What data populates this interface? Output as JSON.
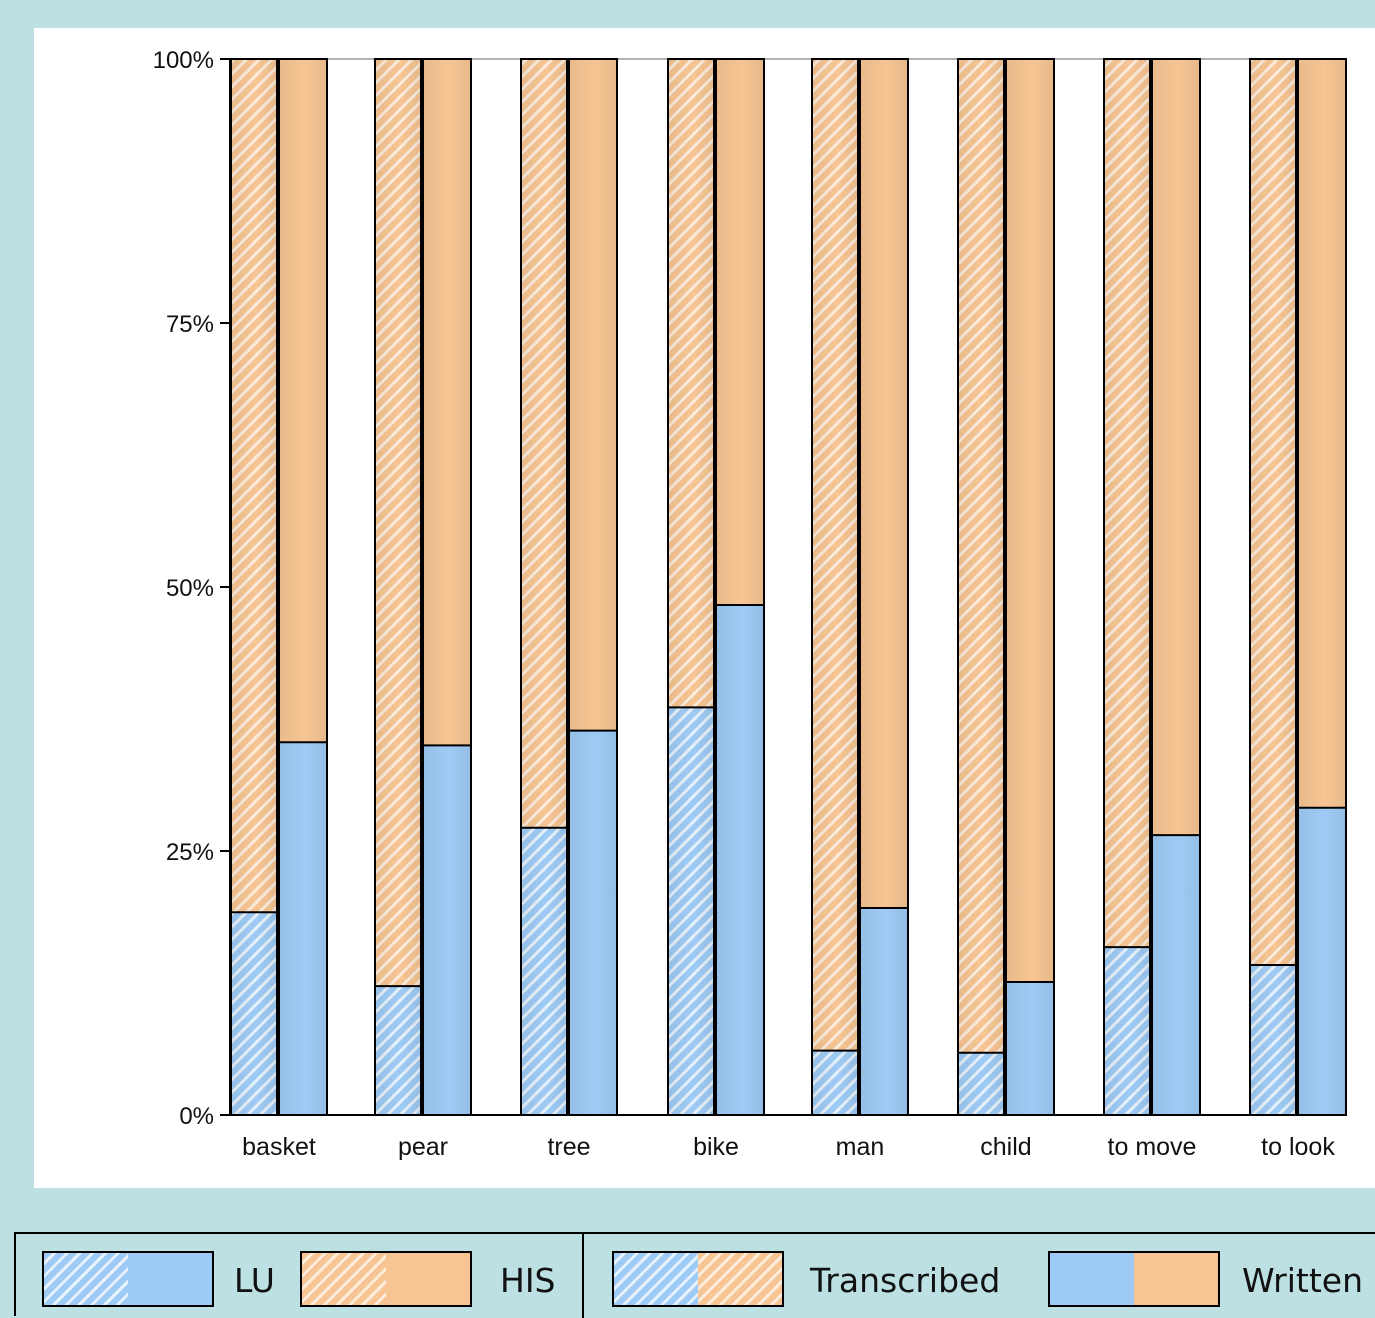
{
  "colors": {
    "lu_blue": "#9ecbf5",
    "his_orange": "#f7c593",
    "stroke": "#000000",
    "background": "#bde0e3",
    "plot_bg": "#ffffff"
  },
  "legend": {
    "lu_label": "LU",
    "his_label": "HIS",
    "transcribed_label": "Transcribed",
    "written_label": "Written"
  },
  "chart_data": {
    "type": "bar",
    "stacked": true,
    "percent": true,
    "categories": [
      "basket",
      "pear",
      "tree",
      "bike",
      "man",
      "child",
      "to move",
      "to look"
    ],
    "series": [
      {
        "name": "Transcribed",
        "lu": [
          19.2,
          12.2,
          27.2,
          38.6,
          6.1,
          5.9,
          15.9,
          14.2
        ]
      },
      {
        "name": "Written",
        "lu": [
          35.3,
          35.0,
          36.4,
          48.3,
          19.6,
          12.6,
          26.5,
          29.1
        ]
      }
    ],
    "yticks": [
      "0%",
      "25%",
      "50%",
      "75%",
      "100%"
    ],
    "ylim": [
      0,
      100
    ],
    "grid": false,
    "legend_position": "bottom"
  }
}
